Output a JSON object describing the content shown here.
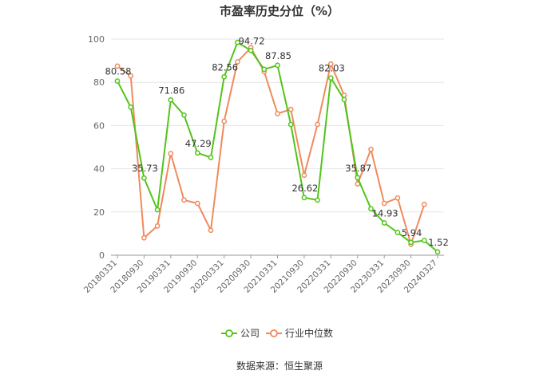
{
  "chart_data": {
    "type": "line",
    "title": "市盈率历史分位（%）",
    "source": "数据来源：恒生聚源",
    "ylim": [
      0,
      100
    ],
    "yticks": [
      0,
      20,
      40,
      60,
      80,
      100
    ],
    "grid": true,
    "legend_position": "bottom",
    "x": [
      "20180331",
      "20180630",
      "20180930",
      "20181231",
      "20190331",
      "20190630",
      "20190930",
      "20191231",
      "20200331",
      "20200630",
      "20200930",
      "20201231",
      "20210331",
      "20210630",
      "20210930",
      "20211231",
      "20220331",
      "20220630",
      "20220930",
      "20221231",
      "20230331",
      "20230630",
      "20230930",
      "20231231",
      "20240327"
    ],
    "xtick_labels": [
      "20180331",
      "20180930",
      "20190331",
      "20190930",
      "20200331",
      "20200930",
      "20210331",
      "20210930",
      "20220331",
      "20220930",
      "20230331",
      "20230930",
      "20240327"
    ],
    "series": [
      {
        "name": "公司",
        "color": "#52c41a",
        "values": [
          80.58,
          68.5,
          35.73,
          21.0,
          71.86,
          64.8,
          47.29,
          45.2,
          82.56,
          98.5,
          94.72,
          86.0,
          87.85,
          60.5,
          26.62,
          25.5,
          82.03,
          72.0,
          35.87,
          21.5,
          14.93,
          10.5,
          5.94,
          6.8,
          1.52
        ],
        "labels": {
          "0": "80.58",
          "2": "35.73",
          "4": "71.86",
          "6": "47.29",
          "8": "82.56",
          "10": "94.72",
          "12": "87.85",
          "14": "26.62",
          "16": "82.03",
          "18": "35.87",
          "20": "14.93",
          "22": "5.94",
          "24": "1.52"
        }
      },
      {
        "name": "行业中位数",
        "color": "#f08a5d",
        "values": [
          87.5,
          83.0,
          8.0,
          13.5,
          47.0,
          25.5,
          24.0,
          11.5,
          62.0,
          89.5,
          96.0,
          85.0,
          65.5,
          67.5,
          37.0,
          60.5,
          88.5,
          74.0,
          33.0,
          49.0,
          24.0,
          26.5,
          5.0,
          23.5,
          null
        ],
        "labels": {}
      }
    ]
  }
}
